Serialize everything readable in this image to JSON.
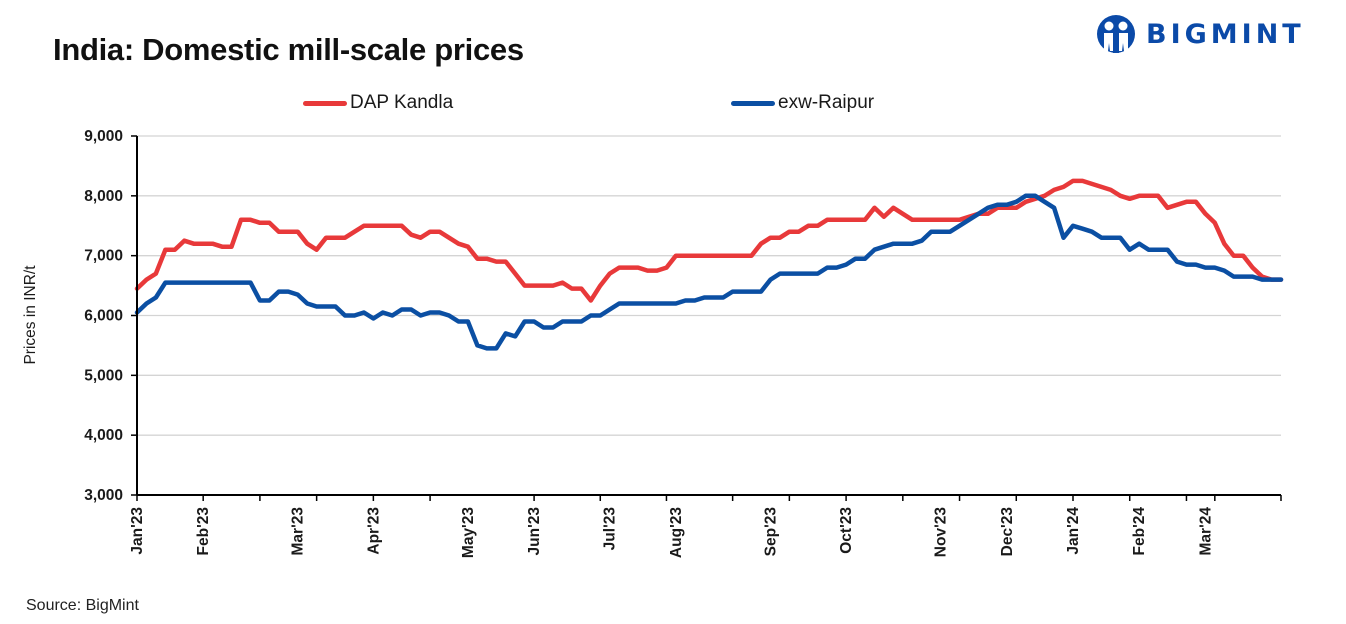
{
  "header": {
    "title": "India: Domestic mill-scale prices",
    "brand": "BIGMINT",
    "brand_color": "#0b4aa8"
  },
  "footer": {
    "source": "Source: BigMint"
  },
  "chart_data": {
    "type": "line",
    "title": "India: Domestic mill-scale prices",
    "xlabel": "",
    "ylabel": "Prices in INR/t",
    "ylim": [
      3000,
      9000
    ],
    "yticks": [
      3000,
      4000,
      5000,
      6000,
      7000,
      8000,
      9000
    ],
    "ytick_labels": [
      "3,000",
      "4,000",
      "5,000",
      "6,000",
      "7,000",
      "8,000",
      "9,000"
    ],
    "grid": true,
    "legend_position": "top",
    "x_month_labels": [
      "Jan'23",
      "Feb'23",
      "Mar'23",
      "Apr'23",
      "May'23",
      "Jun'23",
      "Jul'23",
      "Aug'23",
      "Sep'23",
      "Oct'23",
      "Nov'23",
      "Dec'23",
      "Jan'24",
      "Feb'24",
      "Mar'24"
    ],
    "x_month_label_index": [
      0,
      7,
      17,
      25,
      35,
      42,
      50,
      57,
      67,
      75,
      85,
      92,
      99,
      106,
      113
    ],
    "x_tick_index": [
      0,
      7,
      13,
      19,
      25,
      31,
      42,
      49,
      56,
      63,
      69,
      75,
      81,
      87,
      93,
      99,
      105,
      111,
      114
    ],
    "series": [
      {
        "name": "DAP Kandla",
        "color": "#e8393a",
        "values": [
          6450,
          6600,
          6700,
          7100,
          7100,
          7250,
          7200,
          7200,
          7200,
          7150,
          7150,
          7600,
          7600,
          7550,
          7550,
          7400,
          7400,
          7400,
          7200,
          7100,
          7300,
          7300,
          7300,
          7400,
          7500,
          7500,
          7500,
          7500,
          7500,
          7350,
          7300,
          7400,
          7400,
          7300,
          7200,
          7150,
          6950,
          6950,
          6900,
          6900,
          6700,
          6500,
          6500,
          6500,
          6500,
          6550,
          6450,
          6450,
          6250,
          6500,
          6700,
          6800,
          6800,
          6800,
          6750,
          6750,
          6800,
          7000,
          7000,
          7000,
          7000,
          7000,
          7000,
          7000,
          7000,
          7000,
          7200,
          7300,
          7300,
          7400,
          7400,
          7500,
          7500,
          7600,
          7600,
          7600,
          7600,
          7600,
          7800,
          7650,
          7800,
          7700,
          7600,
          7600,
          7600,
          7600,
          7600,
          7600,
          7650,
          7700,
          7700,
          7800,
          7800,
          7800,
          7900,
          7950,
          8000,
          8100,
          8150,
          8250,
          8250,
          8200,
          8150,
          8100,
          8000,
          7950,
          8000,
          8000,
          8000,
          7800,
          7850,
          7900,
          7900,
          7700,
          7550,
          7200,
          7000,
          7000,
          6800,
          6650,
          6600,
          6600
        ]
      },
      {
        "name": "exw-Raipur",
        "color": "#0b4fa3",
        "values": [
          6050,
          6200,
          6300,
          6550,
          6550,
          6550,
          6550,
          6550,
          6550,
          6550,
          6550,
          6550,
          6550,
          6250,
          6250,
          6400,
          6400,
          6350,
          6200,
          6150,
          6150,
          6150,
          6000,
          6000,
          6050,
          5950,
          6050,
          6000,
          6100,
          6100,
          6000,
          6050,
          6050,
          6000,
          5900,
          5900,
          5500,
          5450,
          5450,
          5700,
          5650,
          5900,
          5900,
          5800,
          5800,
          5900,
          5900,
          5900,
          6000,
          6000,
          6100,
          6200,
          6200,
          6200,
          6200,
          6200,
          6200,
          6200,
          6250,
          6250,
          6300,
          6300,
          6300,
          6400,
          6400,
          6400,
          6400,
          6600,
          6700,
          6700,
          6700,
          6700,
          6700,
          6800,
          6800,
          6850,
          6950,
          6950,
          7100,
          7150,
          7200,
          7200,
          7200,
          7250,
          7400,
          7400,
          7400,
          7500,
          7600,
          7700,
          7800,
          7850,
          7850,
          7900,
          8000,
          8000,
          7900,
          7800,
          7300,
          7500,
          7450,
          7400,
          7300,
          7300,
          7300,
          7100,
          7200,
          7100,
          7100,
          7100,
          6900,
          6850,
          6850,
          6800,
          6800,
          6750,
          6650,
          6650,
          6650,
          6600,
          6600,
          6600
        ]
      }
    ]
  }
}
